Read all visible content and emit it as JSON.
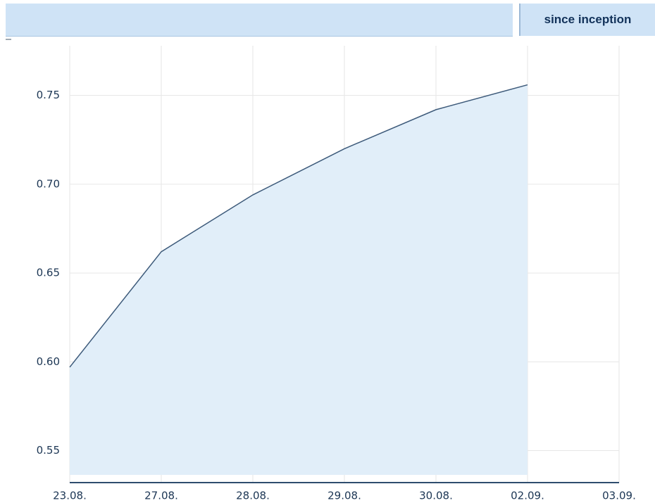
{
  "tab": "since inception",
  "chart_data": {
    "type": "area",
    "categories": [
      "23.08.",
      "27.08.",
      "28.08.",
      "29.08.",
      "30.08.",
      "02.09.",
      "03.09."
    ],
    "values": [
      0.597,
      0.662,
      0.694,
      0.72,
      0.742,
      0.756,
      null
    ],
    "color": "#3d5a7a",
    "fill": "#e1eef9",
    "ylim": [
      0.532,
      0.778
    ],
    "yticks": [
      0.55,
      {
        "value": 0.6,
        "label": "0.60"
      },
      0.65,
      {
        "value": 0.7,
        "label": "0.70"
      },
      0.75
    ],
    "grid": true
  }
}
